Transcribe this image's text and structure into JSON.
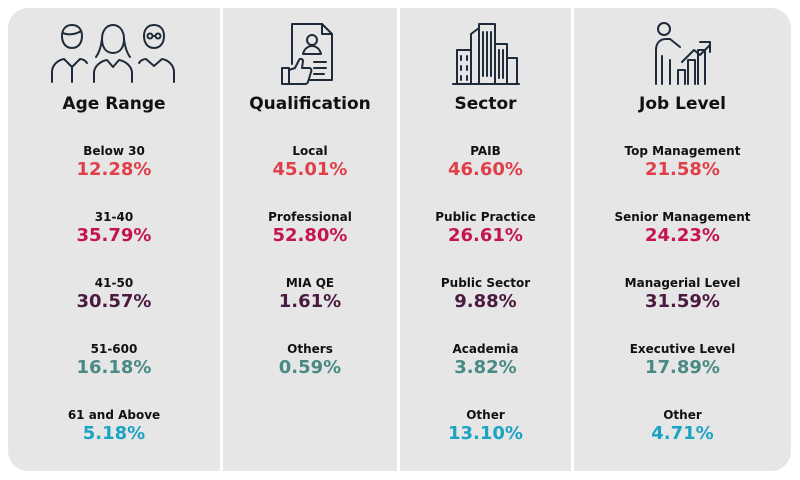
{
  "columns": [
    {
      "icon": "people-group-icon",
      "heading": "Age Range",
      "items": [
        {
          "label": "Below 30",
          "value": "12.28%",
          "color": "#e03f4a"
        },
        {
          "label": "31-40",
          "value": "35.79%",
          "color": "#c4154f"
        },
        {
          "label": "41-50",
          "value": "30.57%",
          "color": "#4a1a40"
        },
        {
          "label": "51-600",
          "value": "16.18%",
          "color": "#4a8a84"
        },
        {
          "label": "61 and Above",
          "value": "5.18%",
          "color": "#1ba3c4"
        }
      ]
    },
    {
      "icon": "resume-thumbs-up-icon",
      "heading": "Qualification",
      "items": [
        {
          "label": "Local",
          "value": "45.01%",
          "color": "#e03f4a"
        },
        {
          "label": "Professional",
          "value": "52.80%",
          "color": "#c4154f"
        },
        {
          "label": "MIA QE",
          "value": "1.61%",
          "color": "#4a1a40"
        },
        {
          "label": "Others",
          "value": "0.59%",
          "color": "#4a8a84"
        }
      ]
    },
    {
      "icon": "buildings-icon",
      "heading": "Sector",
      "items": [
        {
          "label": "PAIB",
          "value": "46.60%",
          "color": "#e03f4a"
        },
        {
          "label": "Public Practice",
          "value": "26.61%",
          "color": "#c4154f"
        },
        {
          "label": "Public Sector",
          "value": "9.88%",
          "color": "#4a1a40"
        },
        {
          "label": "Academia",
          "value": "3.82%",
          "color": "#4a8a84"
        },
        {
          "label": "Other",
          "value": "13.10%",
          "color": "#1ba3c4"
        }
      ]
    },
    {
      "icon": "presenter-growth-chart-icon",
      "heading": "Job Level",
      "items": [
        {
          "label": "Top Management",
          "value": "21.58%",
          "color": "#e03f4a"
        },
        {
          "label": "Senior Management",
          "value": "24.23%",
          "color": "#c4154f"
        },
        {
          "label": "Managerial Level",
          "value": "31.59%",
          "color": "#4a1a40"
        },
        {
          "label": "Executive Level",
          "value": "17.89%",
          "color": "#4a8a84"
        },
        {
          "label": "Other",
          "value": "4.71%",
          "color": "#1ba3c4"
        }
      ]
    }
  ]
}
